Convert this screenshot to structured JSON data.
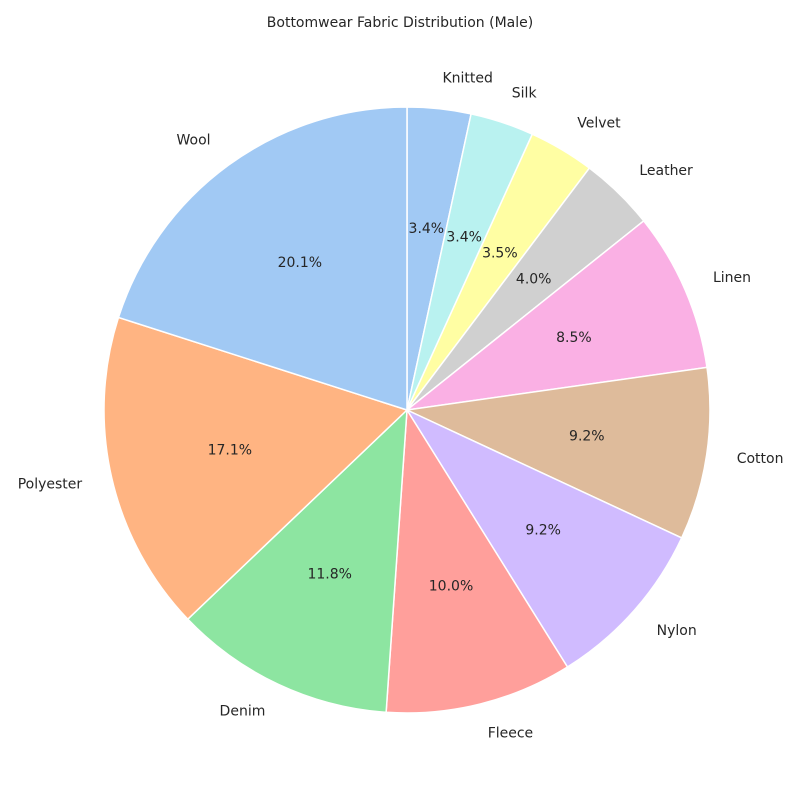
{
  "chart_data": {
    "type": "pie",
    "title": "Bottomwear Fabric Distribution (Male)",
    "categories": [
      "Knitted",
      "Silk",
      "Velvet",
      "Leather",
      "Linen",
      "Cotton",
      "Nylon",
      "Fleece",
      "Denim",
      "Polyester",
      "Wool"
    ],
    "values": [
      3.4,
      3.4,
      3.5,
      4.0,
      8.5,
      9.2,
      9.2,
      10.0,
      11.8,
      17.1,
      20.1
    ],
    "percent_labels": [
      "3.4%",
      "3.4%",
      "3.5%",
      "4.0%",
      "8.5%",
      "9.2%",
      "9.2%",
      "10.0%",
      "11.8%",
      "17.1%",
      "20.1%"
    ],
    "colors": [
      "#a1c9f4",
      "#b9f2f0",
      "#fffea3",
      "#d0d0d0",
      "#fab0e4",
      "#debb9b",
      "#d0bbff",
      "#ff9f9b",
      "#8de5a1",
      "#ffb482",
      "#a1c9f4"
    ],
    "start_angle": "top",
    "direction": "clockwise",
    "legend": "none"
  }
}
